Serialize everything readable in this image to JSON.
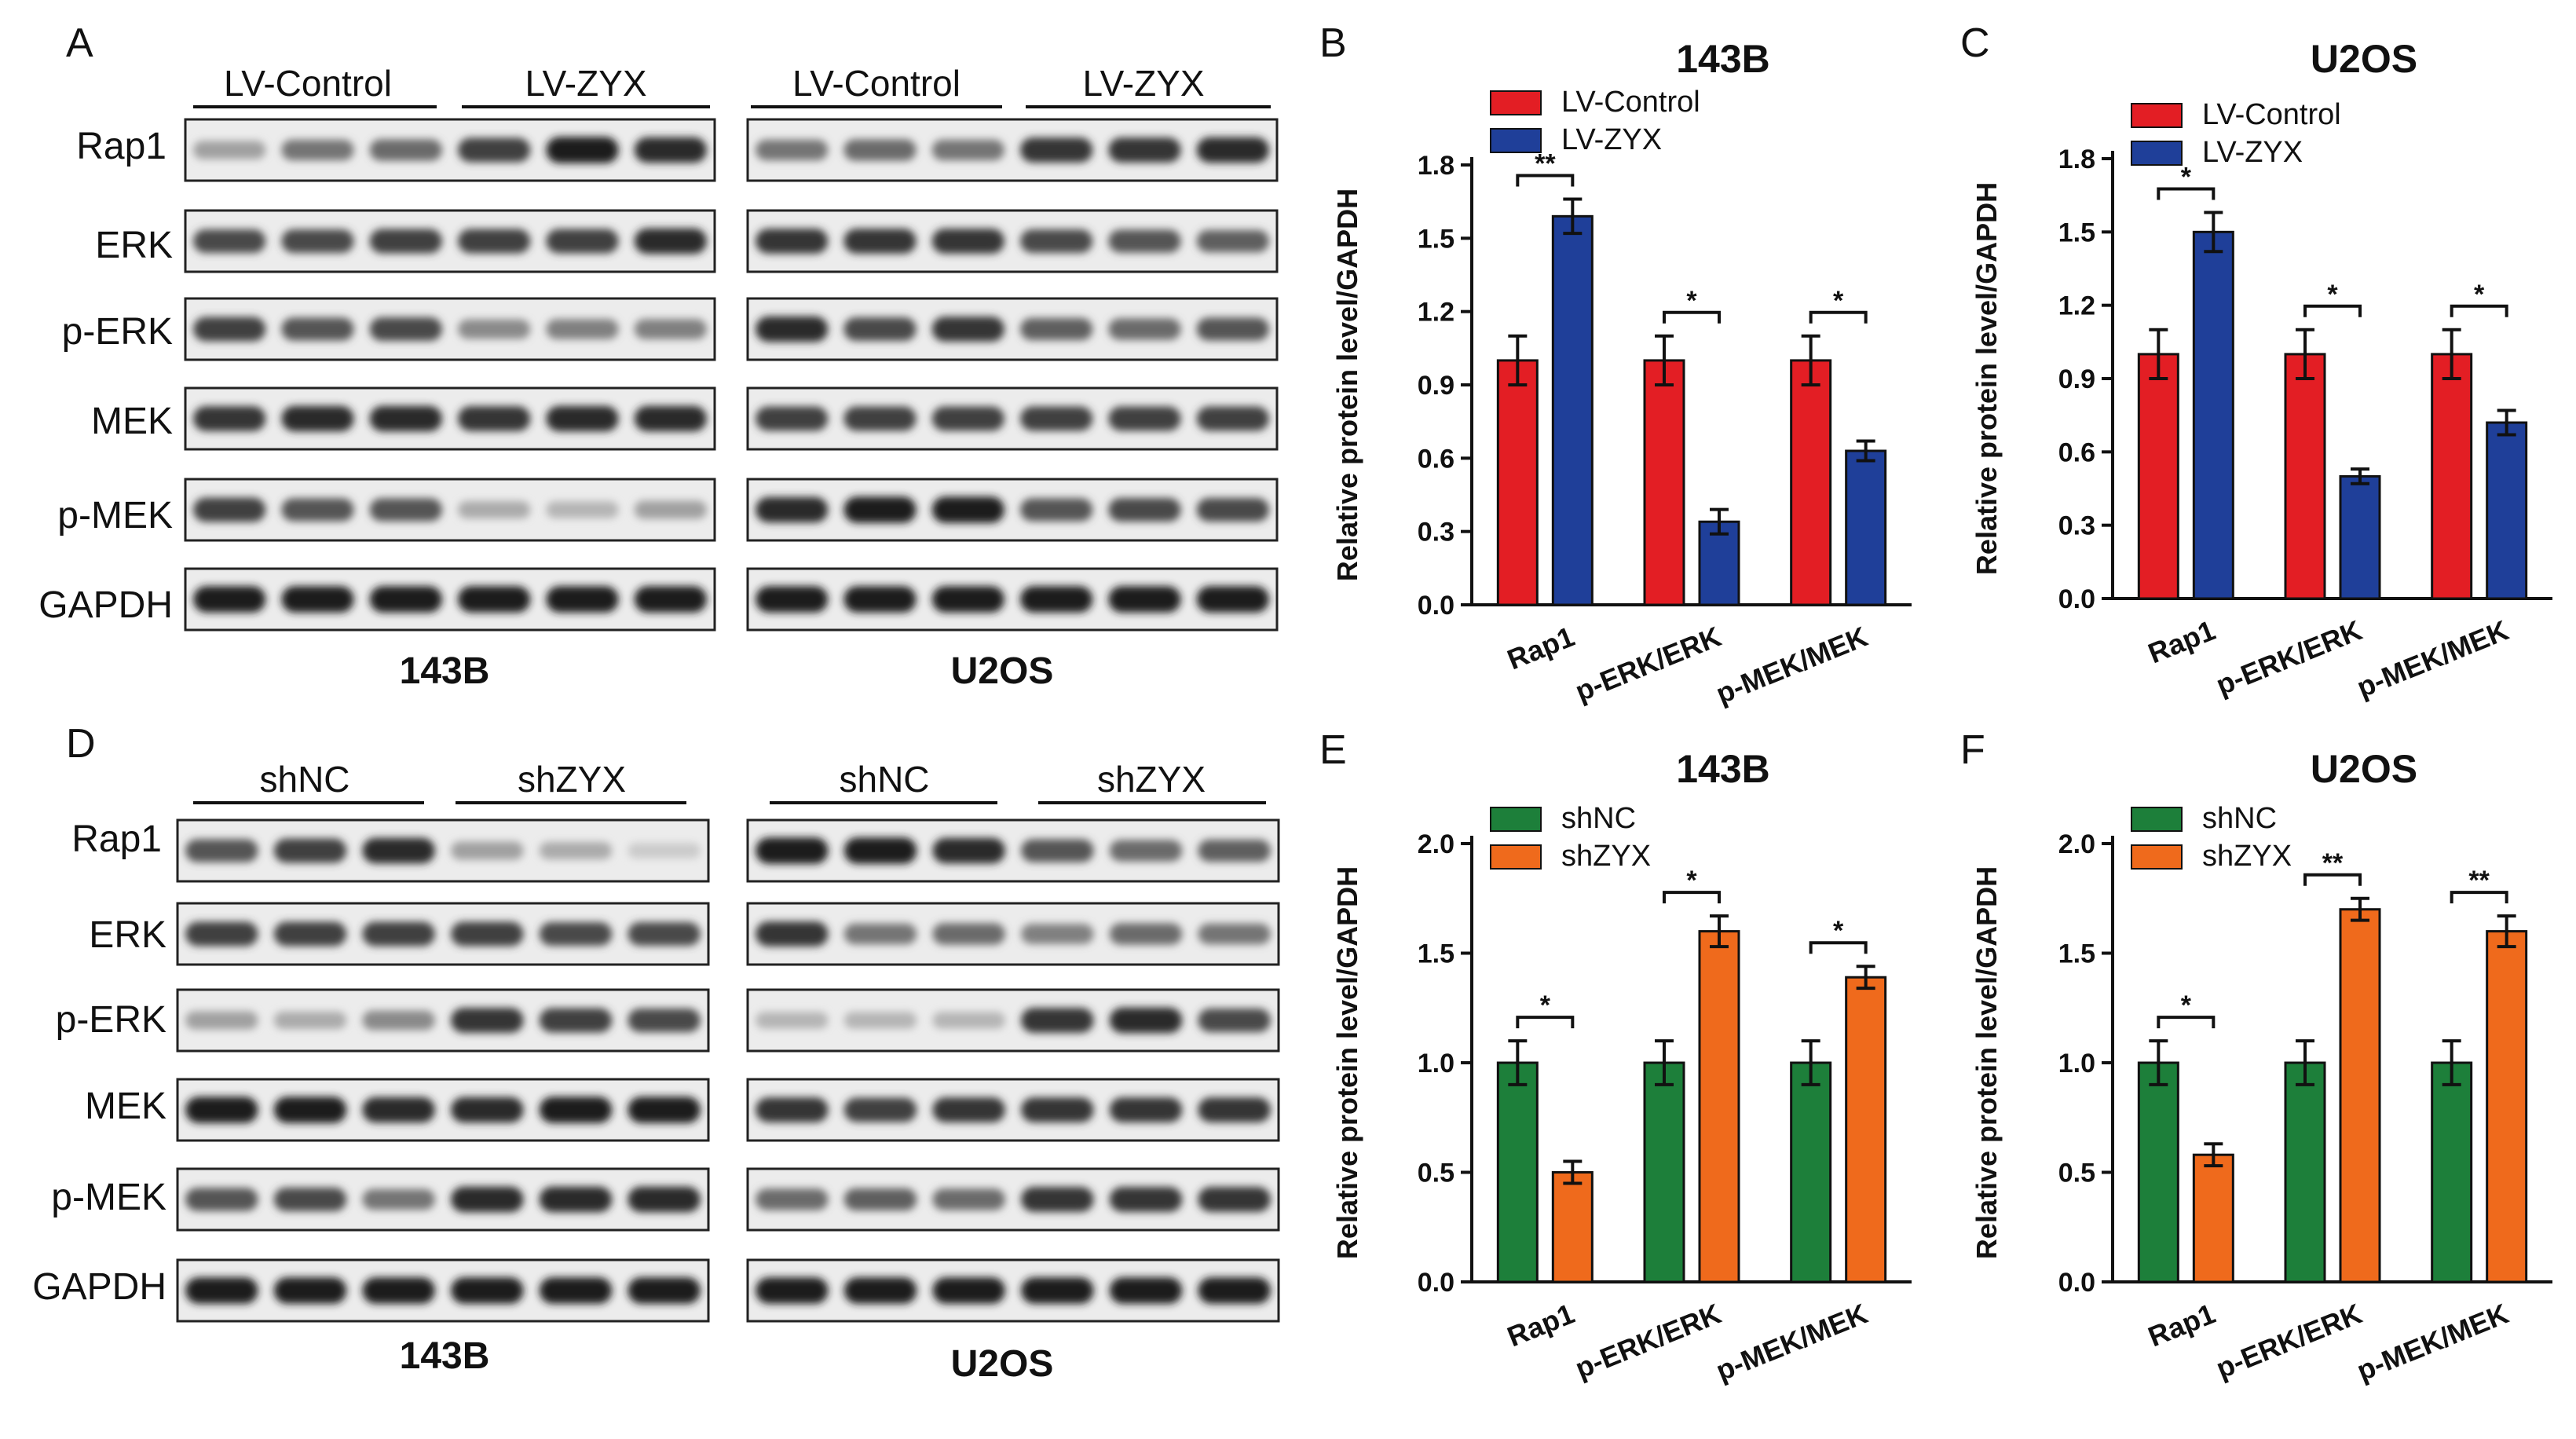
{
  "panels": {
    "A": "A",
    "B": "B",
    "C": "C",
    "D": "D",
    "E": "E",
    "F": "F"
  },
  "blots": [
    {
      "id": "A",
      "cell_labels": [
        "143B",
        "U2OS"
      ],
      "group_labels": [
        "LV-Control",
        "LV-ZYX"
      ],
      "rows": [
        "Rap1",
        "ERK",
        "p-ERK",
        "MEK",
        "p-MEK",
        "GAPDH"
      ],
      "band_intensity": {
        "143B": [
          [
            0.35,
            0.55,
            0.6,
            0.8,
            0.95,
            0.9
          ],
          [
            0.75,
            0.75,
            0.8,
            0.8,
            0.8,
            0.9
          ],
          [
            0.8,
            0.7,
            0.75,
            0.45,
            0.5,
            0.5
          ],
          [
            0.85,
            0.9,
            0.9,
            0.85,
            0.9,
            0.9
          ],
          [
            0.8,
            0.7,
            0.7,
            0.3,
            0.25,
            0.35
          ],
          [
            0.95,
            0.95,
            0.95,
            0.95,
            0.95,
            0.95
          ]
        ],
        "U2OS": [
          [
            0.55,
            0.6,
            0.55,
            0.85,
            0.85,
            0.9
          ],
          [
            0.85,
            0.85,
            0.85,
            0.75,
            0.7,
            0.65
          ],
          [
            0.9,
            0.75,
            0.85,
            0.65,
            0.6,
            0.7
          ],
          [
            0.8,
            0.8,
            0.8,
            0.8,
            0.8,
            0.8
          ],
          [
            0.9,
            0.95,
            0.95,
            0.7,
            0.75,
            0.75
          ],
          [
            0.95,
            0.95,
            0.95,
            0.95,
            0.95,
            0.95
          ]
        ]
      }
    },
    {
      "id": "D",
      "cell_labels": [
        "143B",
        "U2OS"
      ],
      "group_labels": [
        "shNC",
        "shZYX"
      ],
      "rows": [
        "Rap1",
        "ERK",
        "p-ERK",
        "MEK",
        "p-MEK",
        "GAPDH"
      ],
      "band_intensity": {
        "143B": [
          [
            0.7,
            0.8,
            0.9,
            0.35,
            0.3,
            0.15
          ],
          [
            0.8,
            0.8,
            0.8,
            0.8,
            0.75,
            0.75
          ],
          [
            0.35,
            0.3,
            0.45,
            0.85,
            0.8,
            0.75
          ],
          [
            0.95,
            0.95,
            0.9,
            0.9,
            0.95,
            0.95
          ],
          [
            0.7,
            0.75,
            0.55,
            0.9,
            0.9,
            0.9
          ],
          [
            0.95,
            0.95,
            0.95,
            0.95,
            0.95,
            0.95
          ]
        ],
        "U2OS": [
          [
            0.95,
            0.95,
            0.9,
            0.7,
            0.6,
            0.65
          ],
          [
            0.85,
            0.55,
            0.6,
            0.5,
            0.6,
            0.55
          ],
          [
            0.25,
            0.25,
            0.25,
            0.85,
            0.9,
            0.75
          ],
          [
            0.85,
            0.8,
            0.85,
            0.85,
            0.85,
            0.85
          ],
          [
            0.6,
            0.65,
            0.6,
            0.85,
            0.85,
            0.85
          ],
          [
            0.95,
            0.95,
            0.95,
            0.95,
            0.95,
            0.95
          ]
        ]
      }
    }
  ],
  "chart_data": [
    {
      "id": "B",
      "type": "bar",
      "title": "143B",
      "xlabel": "",
      "ylabel": "Relative protein level/GAPDH",
      "ylim": [
        0,
        1.8
      ],
      "yticks": [
        "0.0",
        "0.3",
        "0.6",
        "0.9",
        "1.2",
        "1.5",
        "1.8"
      ],
      "categories": [
        "Rap1",
        "p-ERK/ERK",
        "p-MEK/MEK"
      ],
      "series": [
        {
          "name": "LV-Control",
          "color": "#e31e24",
          "values": [
            1.0,
            1.0,
            1.0
          ],
          "errors": [
            0.1,
            0.1,
            0.1
          ]
        },
        {
          "name": "LV-ZYX",
          "color": "#1f3f99",
          "values": [
            1.59,
            0.34,
            0.63
          ],
          "errors": [
            0.07,
            0.05,
            0.04
          ]
        }
      ],
      "significance": [
        "**",
        "*",
        "*"
      ],
      "legend": "top-left"
    },
    {
      "id": "C",
      "type": "bar",
      "title": "U2OS",
      "xlabel": "",
      "ylabel": "Relative protein level/GAPDH",
      "ylim": [
        0,
        1.8
      ],
      "yticks": [
        "0.0",
        "0.3",
        "0.6",
        "0.9",
        "1.2",
        "1.5",
        "1.8"
      ],
      "categories": [
        "Rap1",
        "p-ERK/ERK",
        "p-MEK/MEK"
      ],
      "series": [
        {
          "name": "LV-Control",
          "color": "#e31e24",
          "values": [
            1.0,
            1.0,
            1.0
          ],
          "errors": [
            0.1,
            0.1,
            0.1
          ]
        },
        {
          "name": "LV-ZYX",
          "color": "#1f3f99",
          "values": [
            1.5,
            0.5,
            0.72
          ],
          "errors": [
            0.08,
            0.03,
            0.05
          ]
        }
      ],
      "significance": [
        "*",
        "*",
        "*"
      ],
      "legend": "top-left"
    },
    {
      "id": "E",
      "type": "bar",
      "title": "143B",
      "xlabel": "",
      "ylabel": "Relative protein level/GAPDH",
      "ylim": [
        0,
        2.0
      ],
      "yticks": [
        "0.0",
        "0.5",
        "1.0",
        "1.5",
        "2.0"
      ],
      "categories": [
        "Rap1",
        "p-ERK/ERK",
        "p-MEK/MEK"
      ],
      "series": [
        {
          "name": "shNC",
          "color": "#1d7f3a",
          "values": [
            1.0,
            1.0,
            1.0
          ],
          "errors": [
            0.1,
            0.1,
            0.1
          ]
        },
        {
          "name": "shZYX",
          "color": "#ef6a1c",
          "values": [
            0.5,
            1.6,
            1.39
          ],
          "errors": [
            0.05,
            0.07,
            0.05
          ]
        }
      ],
      "significance": [
        "*",
        "*",
        "*"
      ],
      "legend": "top-left"
    },
    {
      "id": "F",
      "type": "bar",
      "title": "U2OS",
      "xlabel": "",
      "ylabel": "Relative protein level/GAPDH",
      "ylim": [
        0,
        2.0
      ],
      "yticks": [
        "0.0",
        "0.5",
        "1.0",
        "1.5",
        "2.0"
      ],
      "categories": [
        "Rap1",
        "p-ERK/ERK",
        "p-MEK/MEK"
      ],
      "series": [
        {
          "name": "shNC",
          "color": "#1d7f3a",
          "values": [
            1.0,
            1.0,
            1.0
          ],
          "errors": [
            0.1,
            0.1,
            0.1
          ]
        },
        {
          "name": "shZYX",
          "color": "#ef6a1c",
          "values": [
            0.58,
            1.7,
            1.6
          ],
          "errors": [
            0.05,
            0.05,
            0.07
          ]
        }
      ],
      "significance": [
        "*",
        "**",
        "**"
      ],
      "legend": "top-left"
    }
  ]
}
